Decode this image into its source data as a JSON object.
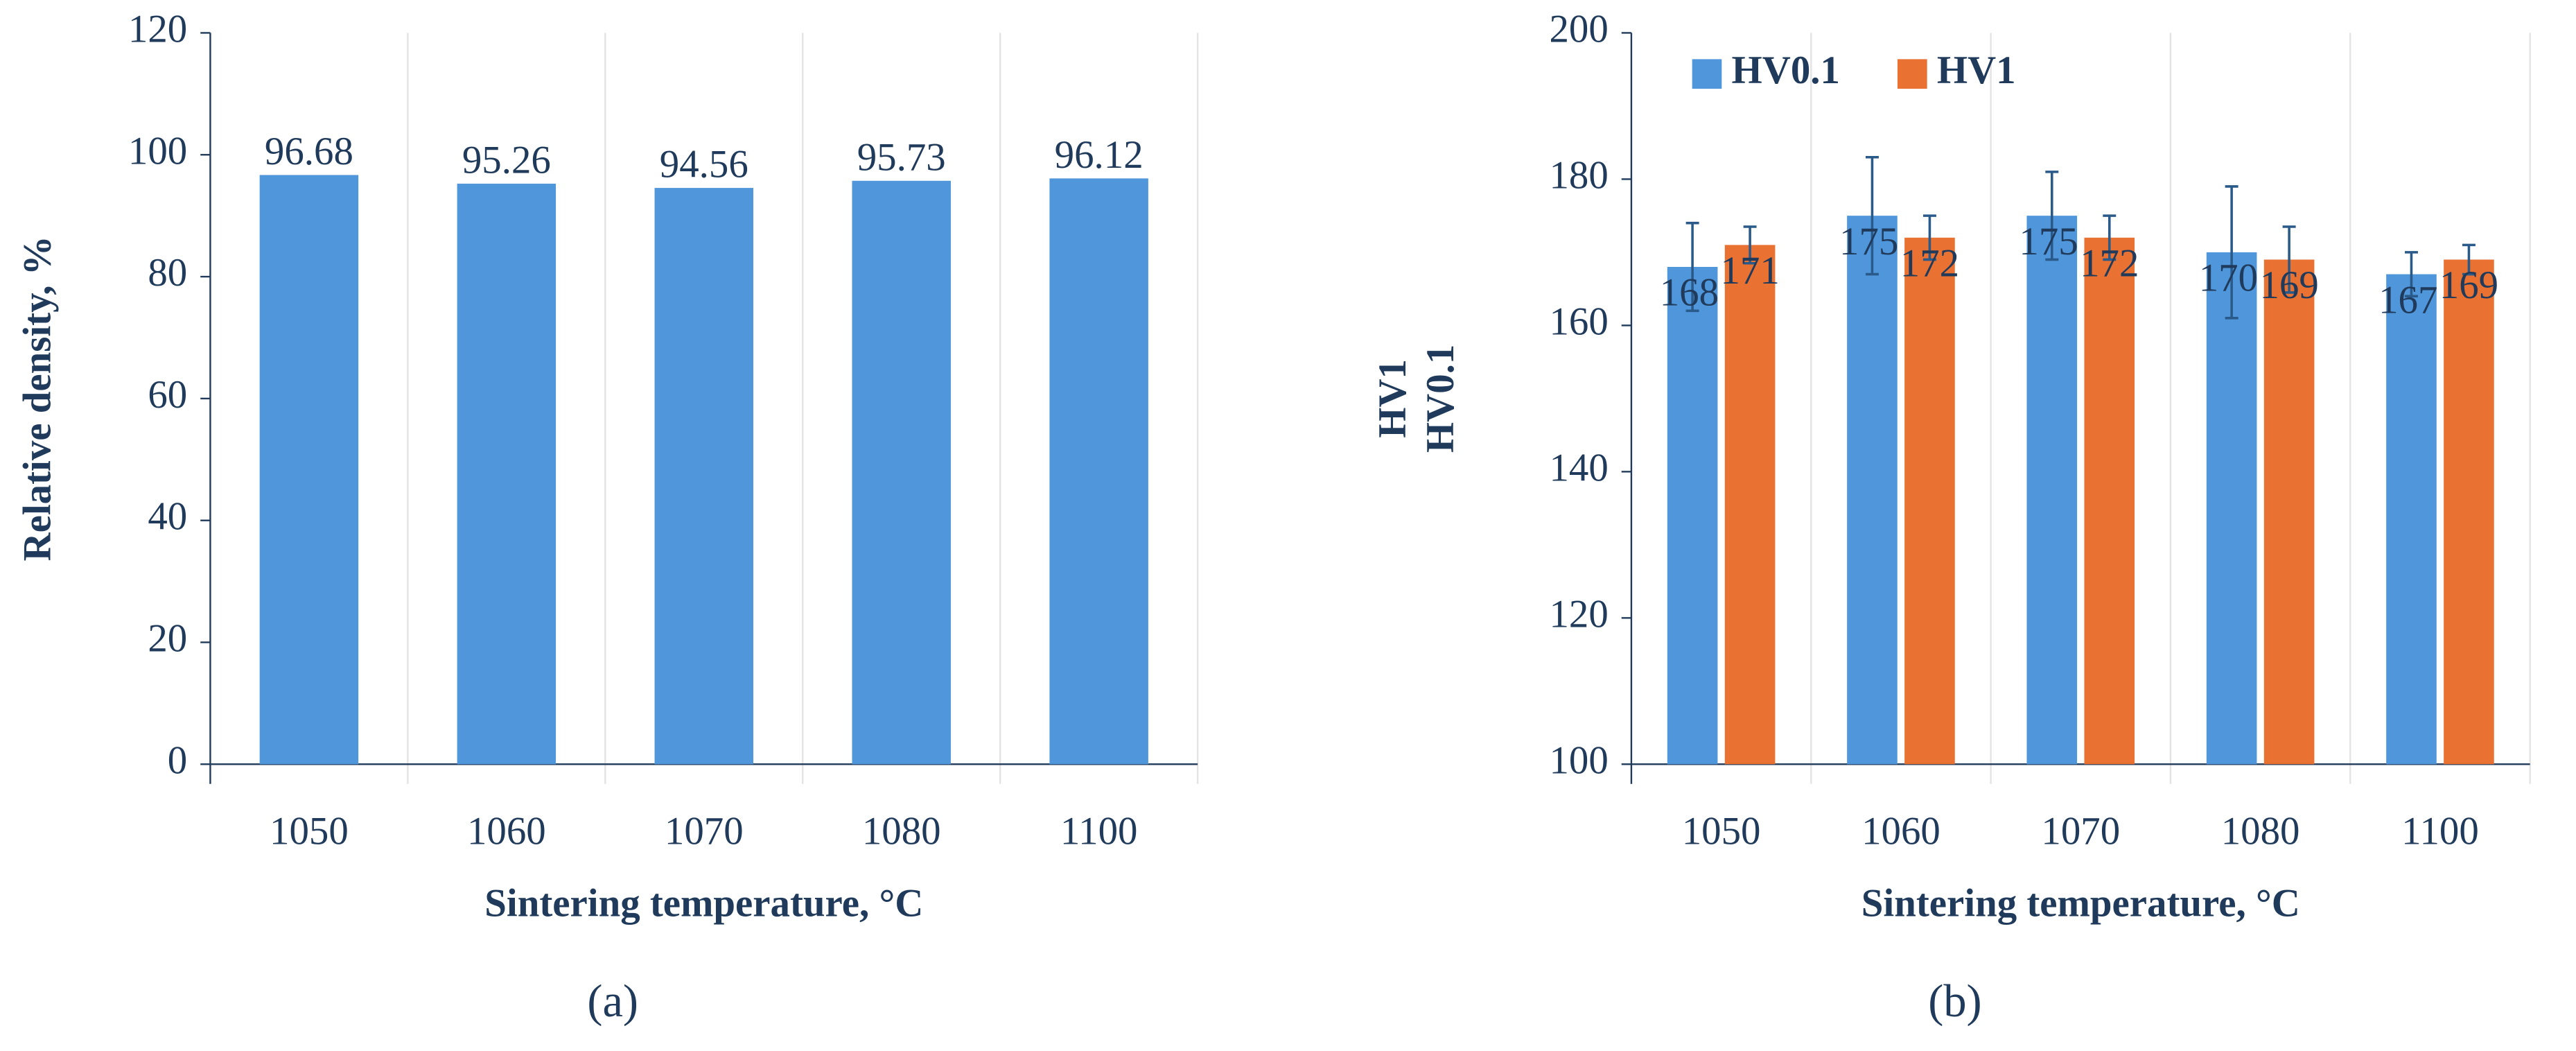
{
  "chart_data": [
    {
      "type": "bar",
      "panel": "(a)",
      "categories": [
        "1050",
        "1060",
        "1070",
        "1080",
        "1100"
      ],
      "values": [
        96.68,
        95.26,
        94.56,
        95.73,
        96.12
      ],
      "color": "#5096db",
      "ylim": [
        0,
        120
      ],
      "yticks": [
        0,
        20,
        40,
        60,
        80,
        100,
        120
      ],
      "xlabel": "Sintering temperature, °C",
      "ylabel": "Relative density, %"
    },
    {
      "type": "bar",
      "panel": "(b)",
      "categories": [
        "1050",
        "1060",
        "1070",
        "1080",
        "1100"
      ],
      "series": [
        {
          "name": "HV0.1",
          "color": "#5096db",
          "values": [
            168,
            175,
            175,
            170,
            167
          ],
          "errors": [
            6,
            8,
            6,
            9,
            3
          ]
        },
        {
          "name": "HV1",
          "color": "#e97132",
          "values": [
            171,
            172,
            172,
            169,
            169
          ],
          "errors": [
            2.5,
            3,
            3,
            4.5,
            2
          ]
        }
      ],
      "ylim": [
        100,
        200
      ],
      "yticks": [
        100,
        120,
        140,
        160,
        180,
        200
      ],
      "xlabel": "Sintering temperature, °C",
      "ylabel": [
        "HV1",
        "HV0.1"
      ],
      "legend": "upper left"
    }
  ]
}
